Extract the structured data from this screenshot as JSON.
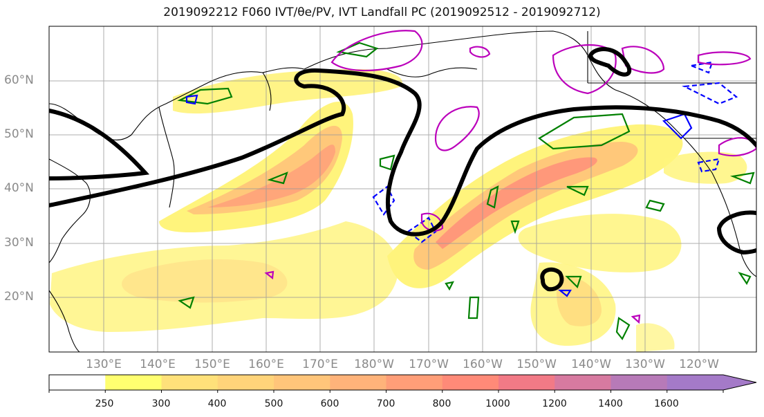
{
  "title": "2019092212 F060 IVT/θe/PV, IVT Landfall PC (2019092512 - 2019092712)",
  "lat_labels": [
    "60°N",
    "50°N",
    "40°N",
    "30°N",
    "20°N"
  ],
  "lon_labels": [
    "130°E",
    "140°E",
    "150°E",
    "160°E",
    "170°E",
    "180°W",
    "170°W",
    "160°W",
    "150°W",
    "140°W",
    "130°W",
    "120°W"
  ],
  "colorbar": {
    "ticks": [
      "250",
      "300",
      "400",
      "500",
      "600",
      "700",
      "800",
      "1000",
      "1200",
      "1400",
      "1600"
    ],
    "colors": [
      "#ffffff",
      "#ffff70",
      "#ffe17a",
      "#ffd47a",
      "#ffc57a",
      "#ffb37a",
      "#ff9e78",
      "#ff8a78",
      "#f27a86",
      "#d77aa0",
      "#b77ab8",
      "#a47ac8"
    ]
  },
  "map": {
    "lat_range": [
      10,
      70
    ],
    "lon_range": [
      120,
      251
    ],
    "gridlines": true,
    "fill_field": "IVT",
    "contour_colors": {
      "pv": "#008000",
      "theta_e_neg": "#0000ff",
      "theta_e_pos": "#cc00cc",
      "landfall_pc": "#000000"
    }
  }
}
